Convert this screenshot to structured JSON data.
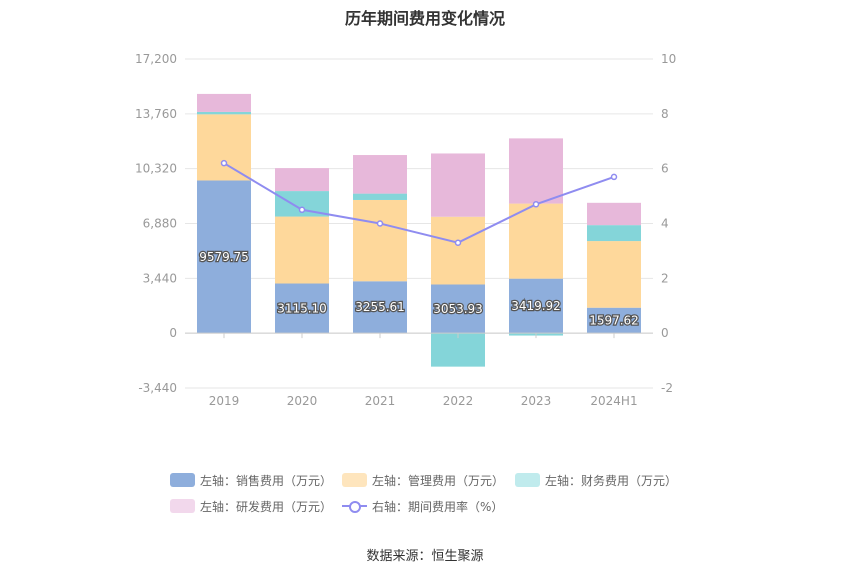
{
  "chart_data": {
    "type": "bar",
    "title": "历年期间费用变化情况",
    "categories": [
      "2019",
      "2020",
      "2021",
      "2022",
      "2023",
      "2024H1"
    ],
    "series": [
      {
        "name": "左轴：销售费用（万元）",
        "axis": "left",
        "stack": "cost",
        "color": "#8eaedc",
        "values": [
          9579.75,
          3115.1,
          3255.61,
          3053.93,
          3419.92,
          1597.62
        ]
      },
      {
        "name": "左轴：管理费用（万元）",
        "axis": "left",
        "stack": "cost",
        "color": "#fed89b",
        "values": [
          4150,
          4200,
          5100,
          4250,
          4710,
          4180
        ]
      },
      {
        "name": "左轴：财务费用（万元）",
        "axis": "left",
        "stack": "cost",
        "color": "#84d5d9",
        "values": [
          150,
          1600,
          400,
          -2100,
          -150,
          1000
        ]
      },
      {
        "name": "左轴：研发费用（万元）",
        "axis": "left",
        "stack": "cost",
        "color": "#e7b8da",
        "values": [
          1130,
          1440,
          2420,
          3970,
          4090,
          1400
        ]
      },
      {
        "name": "右轴：期间费用率（%）",
        "axis": "right",
        "type": "line",
        "color": "#8f8cf0",
        "values": [
          6.2,
          4.5,
          4.0,
          3.3,
          4.7,
          5.7
        ]
      }
    ],
    "data_labels": [
      "9579.75",
      "3115.10",
      "3255.61",
      "3053.93",
      "3419.92",
      "1597.62"
    ],
    "y_left": {
      "ticks": [
        "17,200",
        "13,760",
        "10,320",
        "6,880",
        "3,440",
        "0",
        "-3,440"
      ],
      "tick_values": [
        17200,
        13760,
        10320,
        6880,
        3440,
        0,
        -3440
      ],
      "ylim": [
        -3440,
        17200
      ]
    },
    "y_right": {
      "ticks": [
        "10",
        "8",
        "6",
        "4",
        "2",
        "0",
        "-2"
      ],
      "tick_values": [
        10,
        8,
        6,
        4,
        2,
        0,
        -2
      ],
      "ylim": [
        -2,
        10
      ]
    },
    "grid": true,
    "legend": "bottom"
  },
  "legend_items": [
    "左轴：销售费用（万元）",
    "左轴：管理费用（万元）",
    "左轴：财务费用（万元）",
    "左轴：研发费用（万元）",
    "右轴：期间费用率（%）"
  ],
  "legend_colors": [
    "#8eaedc",
    "#fee5bd",
    "#c0ebed",
    "#f2d8ec"
  ],
  "source": "数据来源：恒生聚源"
}
